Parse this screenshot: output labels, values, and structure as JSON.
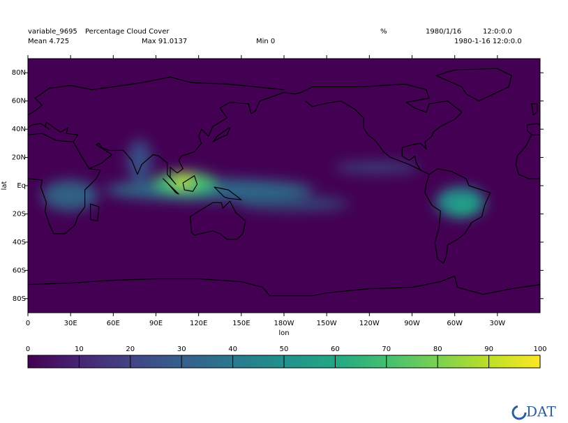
{
  "header": {
    "variable": "variable_9695",
    "long_name": "Percentage Cloud Cover",
    "units": "%",
    "date": "1980/1/16",
    "time": "12:0:0.0",
    "mean": "Mean 4.725",
    "max": "Max 91.0137",
    "min": "Min 0",
    "datetime": "1980-1-16 12:0:0.0"
  },
  "map": {
    "x_label": "lon",
    "y_label": "lat",
    "xlim": [
      0,
      360
    ],
    "ylim": [
      -90,
      90
    ],
    "xticks": [
      0,
      {
        "value": 30,
        "label": "30E"
      },
      {
        "value": 60,
        "label": "60E"
      },
      {
        "value": 90,
        "label": "90E"
      },
      {
        "value": 120,
        "label": "120E"
      },
      {
        "value": 150,
        "label": "150E"
      },
      {
        "value": 180,
        "label": "180W"
      },
      {
        "value": 210,
        "label": "150W"
      },
      {
        "value": 240,
        "label": "120W"
      },
      {
        "value": 270,
        "label": "90W"
      },
      {
        "value": 300,
        "label": "60W"
      },
      {
        "value": 330,
        "label": "30W"
      }
    ],
    "yticks": [
      {
        "value": 80,
        "label": "80N"
      },
      {
        "value": 60,
        "label": "60N"
      },
      {
        "value": 40,
        "label": "40N"
      },
      {
        "value": 20,
        "label": "20N"
      },
      {
        "value": 0,
        "label": "Eq"
      },
      {
        "value": -20,
        "label": "20S"
      },
      {
        "value": -40,
        "label": "40S"
      },
      {
        "value": -60,
        "label": "60S"
      },
      {
        "value": -80,
        "label": "80S"
      }
    ]
  },
  "colorbar": {
    "lim": [
      0,
      100
    ],
    "ticks": [
      0,
      10,
      20,
      30,
      40,
      50,
      60,
      70,
      80,
      90,
      100
    ],
    "colors": [
      "#440154",
      "#482475",
      "#414487",
      "#355f8d",
      "#2a788e",
      "#21918c",
      "#22a884",
      "#44bf70",
      "#7ad151",
      "#bddf26",
      "#fde725"
    ]
  },
  "logo": "DAT"
}
